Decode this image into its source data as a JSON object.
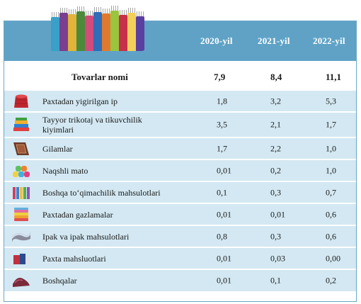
{
  "header": {
    "years": [
      "2020-yil",
      "2021-yil",
      "2022-yil"
    ],
    "header_color": "#5fa2c6",
    "row_color": "#d3e8f2"
  },
  "totals": {
    "label": "Tovarlar nomi",
    "v2020": "7,9",
    "v2021": "8,4",
    "v2022": "11,1"
  },
  "rows": [
    {
      "label": "Paxtadan yigirilgan ip",
      "icon": "yarn-spool-icon",
      "v2020": "1,8",
      "v2021": "3,2",
      "v2022": "5,3"
    },
    {
      "label": "Tayyor trikotaj va tikuvchilik kiyimlari",
      "icon": "folded-clothes-icon",
      "v2020": "3,5",
      "v2021": "2,1",
      "v2022": "1,7"
    },
    {
      "label": "Gilamlar",
      "icon": "carpet-icon",
      "v2020": "1,7",
      "v2021": "2,2",
      "v2022": "1,0"
    },
    {
      "label": "Naqshli mato",
      "icon": "fabric-rolls-icon",
      "v2020": "0,01",
      "v2021": "0,2",
      "v2022": "1,0"
    },
    {
      "label": "Boshqa toʻqimachilik mahsulotlari",
      "icon": "thread-spools-icon",
      "v2020": "0,1",
      "v2021": "0,3",
      "v2022": "0,7"
    },
    {
      "label": "Paxtadan gazlamalar",
      "icon": "towel-stack-icon",
      "v2020": "0,01",
      "v2021": "0,01",
      "v2022": "0,6"
    },
    {
      "label": "Ipak va ipak mahsulotlari",
      "icon": "silk-fabric-icon",
      "v2020": "0,8",
      "v2021": "0,3",
      "v2022": "0,6"
    },
    {
      "label": "Paxta mahsluotlari",
      "icon": "cotton-products-icon",
      "v2020": "0,01",
      "v2021": "0,03",
      "v2022": "0,00"
    },
    {
      "label": "Boshqalar",
      "icon": "other-textiles-icon",
      "v2020": "0,01",
      "v2021": "0,1",
      "v2022": "0,2"
    }
  ]
}
